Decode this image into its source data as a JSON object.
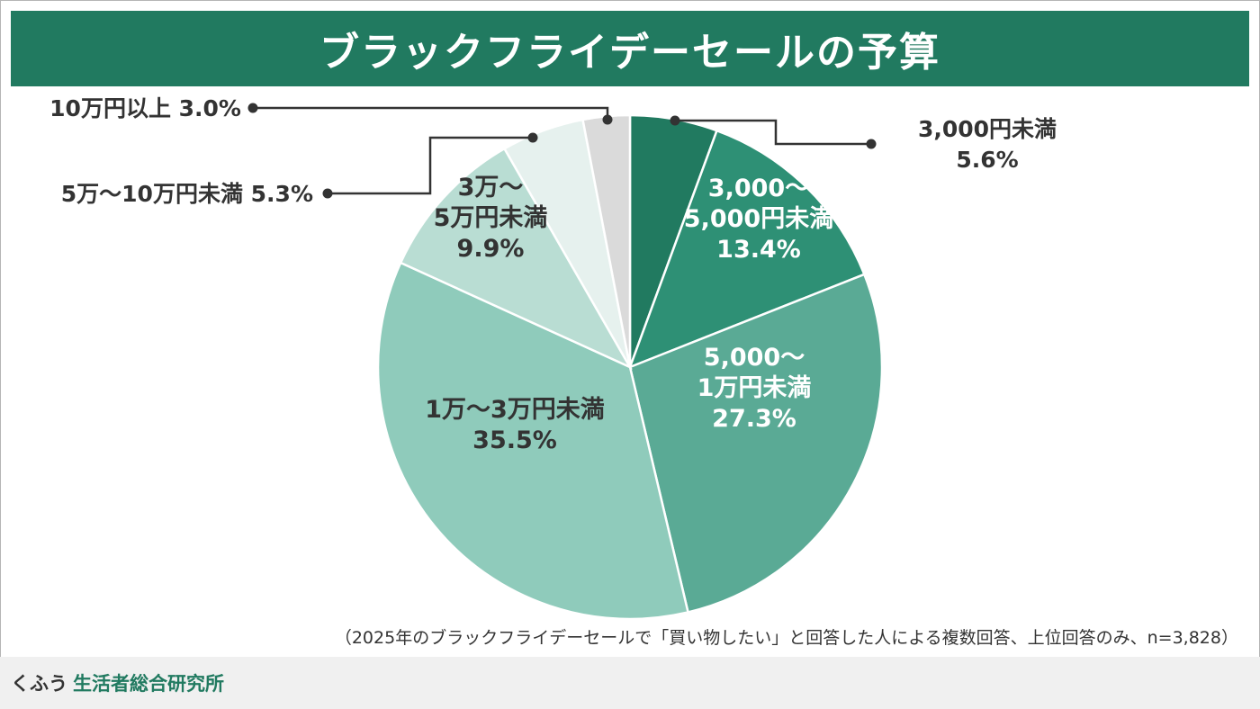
{
  "title": "ブラックフライデーセールの予算",
  "note": "（2025年のブラックフライデーセールで「買い物したい」と回答した人による複数回答、上位回答のみ、n=3,828）",
  "footer": {
    "brand_prefix": "くふう",
    "brand_name": "生活者総合研究所"
  },
  "chart_data": {
    "type": "pie",
    "title": "ブラックフライデーセールの予算",
    "unit": "%",
    "slices": [
      {
        "label_lines": [
          "3,000円未満"
        ],
        "value": 5.6,
        "value_text": "5.6%",
        "color": "#217a60"
      },
      {
        "label_lines": [
          "3,000～",
          "5,000円未満"
        ],
        "value": 13.4,
        "value_text": "13.4%",
        "color": "#2e9075"
      },
      {
        "label_lines": [
          "5,000～",
          "1万円未満"
        ],
        "value": 27.3,
        "value_text": "27.3%",
        "color": "#5aaa95"
      },
      {
        "label_lines": [
          "1万～3万円未満"
        ],
        "value": 35.5,
        "value_text": "35.5%",
        "color": "#8fcbbb"
      },
      {
        "label_lines": [
          "3万～",
          "5万円未満"
        ],
        "value": 9.9,
        "value_text": "9.9%",
        "color": "#b9ddd3"
      },
      {
        "label_lines": [
          "5万～10万円未満"
        ],
        "value": 5.3,
        "value_text": "5.3%",
        "color": "#e6f1ee"
      },
      {
        "label_lines": [
          "10万円以上"
        ],
        "value": 3.0,
        "value_text": "3.0%",
        "color": "#dadada"
      }
    ]
  }
}
